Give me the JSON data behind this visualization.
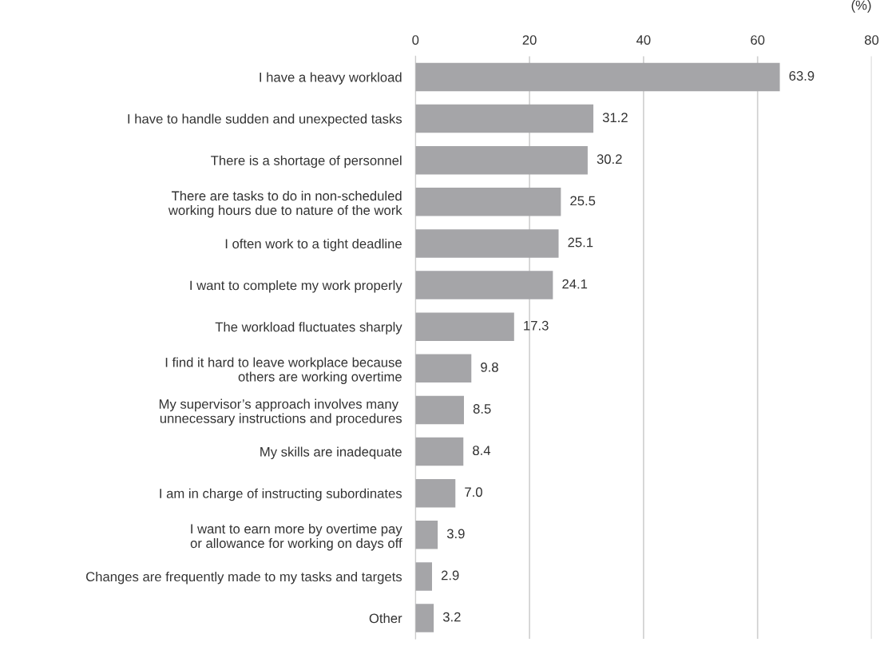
{
  "chart_data": {
    "type": "bar",
    "orientation": "horizontal",
    "xlabel": "(%)",
    "categories": [
      "I have a heavy workload",
      "I have to handle sudden and unexpected tasks",
      "There is a shortage of personnel",
      "There are tasks to do in non-scheduled\nworking hours due to nature of the work",
      "I often work to a tight deadline",
      "I want to complete my work properly",
      "The workload fluctuates sharply",
      "I find it hard to leave workplace because\nothers are working overtime",
      "My supervisor’s approach involves many \nunnecessary instructions and procedures",
      "My skills are inadequate",
      "I am in charge of instructing subordinates",
      "I want to earn more by overtime pay\nor allowance for working on days off",
      "Changes are frequently made to my tasks and targets",
      "Other"
    ],
    "values": [
      63.9,
      31.2,
      30.2,
      25.5,
      25.1,
      24.1,
      17.3,
      9.8,
      8.5,
      8.4,
      7.0,
      3.9,
      2.9,
      3.2
    ],
    "color": "#a5a5a8",
    "xlim": [
      0,
      80
    ],
    "xticks": [
      0,
      20,
      40,
      60,
      80
    ],
    "grid": "x",
    "value_labels": [
      "63.9",
      "31.2",
      "30.2",
      "25.5",
      "25.1",
      "24.1",
      "17.3",
      "9.8",
      "8.5",
      "8.4",
      "7.0",
      "3.9",
      "2.9",
      "3.2"
    ]
  }
}
